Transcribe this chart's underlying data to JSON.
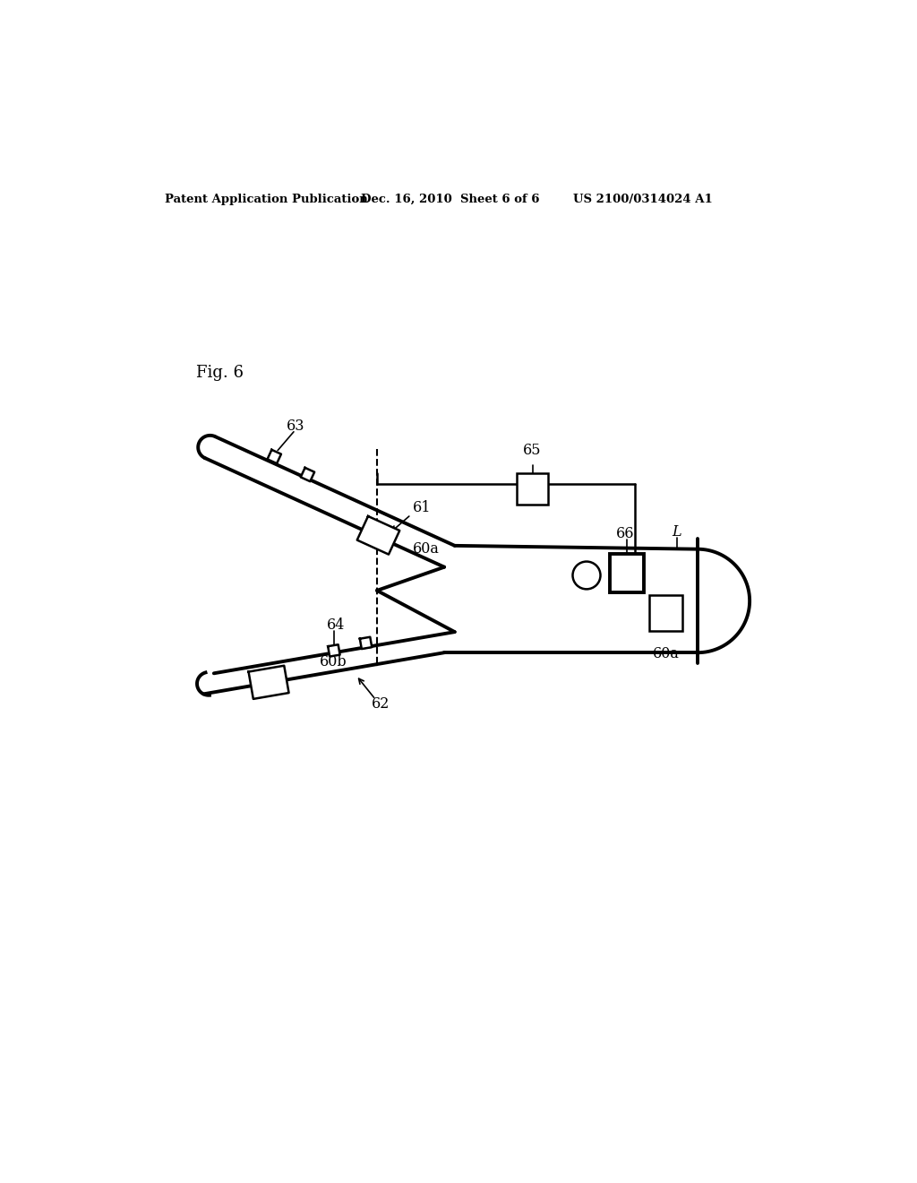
{
  "bg_color": "#ffffff",
  "line_color": "#000000",
  "header_left": "Patent Application Publication",
  "header_mid": "Dec. 16, 2010  Sheet 6 of 6",
  "header_right": "US 2100/0314024 A1",
  "fig_label": "Fig. 6",
  "labels": {
    "60a_upper": "60a",
    "60a_lower": "60a",
    "60b": "60b",
    "61": "61",
    "62": "62",
    "63": "63",
    "64": "64",
    "65": "65",
    "66": "66",
    "L": "L"
  },
  "lw_thick": 2.8,
  "lw_med": 1.8,
  "lw_thin": 1.4
}
